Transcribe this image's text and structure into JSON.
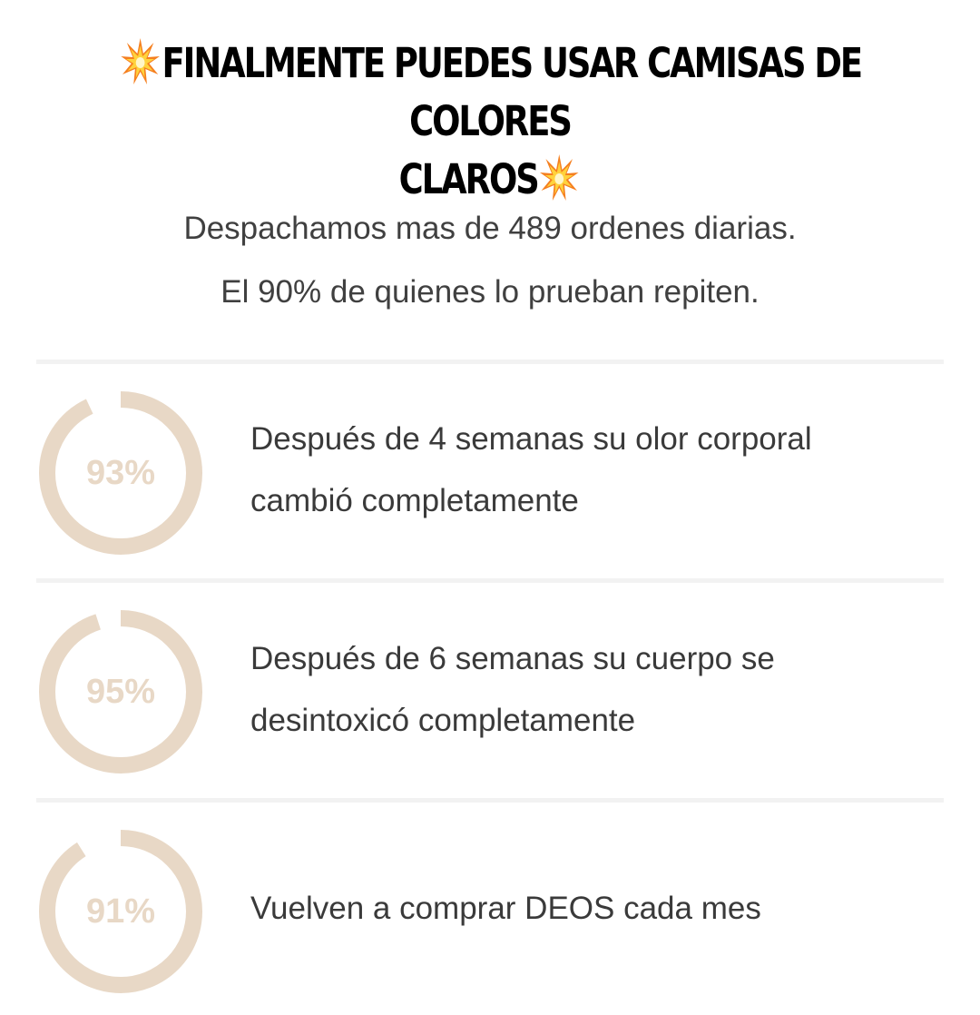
{
  "headline": {
    "line1": "FINALMENTE PUEDES USAR CAMISAS DE COLORES",
    "line2": "CLAROS",
    "icon": "collision-emoji-icon"
  },
  "subtitle": {
    "line1": "Despachamos mas de 489 ordenes diarias.",
    "line2": "El 90% de quienes lo prueban repiten."
  },
  "stats": [
    {
      "percent_label": "93%",
      "value": 93,
      "text": "Después de 4 semanas su olor corporal cambió completamente"
    },
    {
      "percent_label": "95%",
      "value": 95,
      "text": "Después de 6 semanas su cuerpo se desintoxicó completamente"
    },
    {
      "percent_label": "91%",
      "value": 91,
      "text": "Vuelven a comprar DEOS cada mes"
    }
  ],
  "colors": {
    "ring": "#e8d8c6",
    "divider": "#f2f2f2",
    "text": "#3a3a3a",
    "headline": "#000000"
  }
}
